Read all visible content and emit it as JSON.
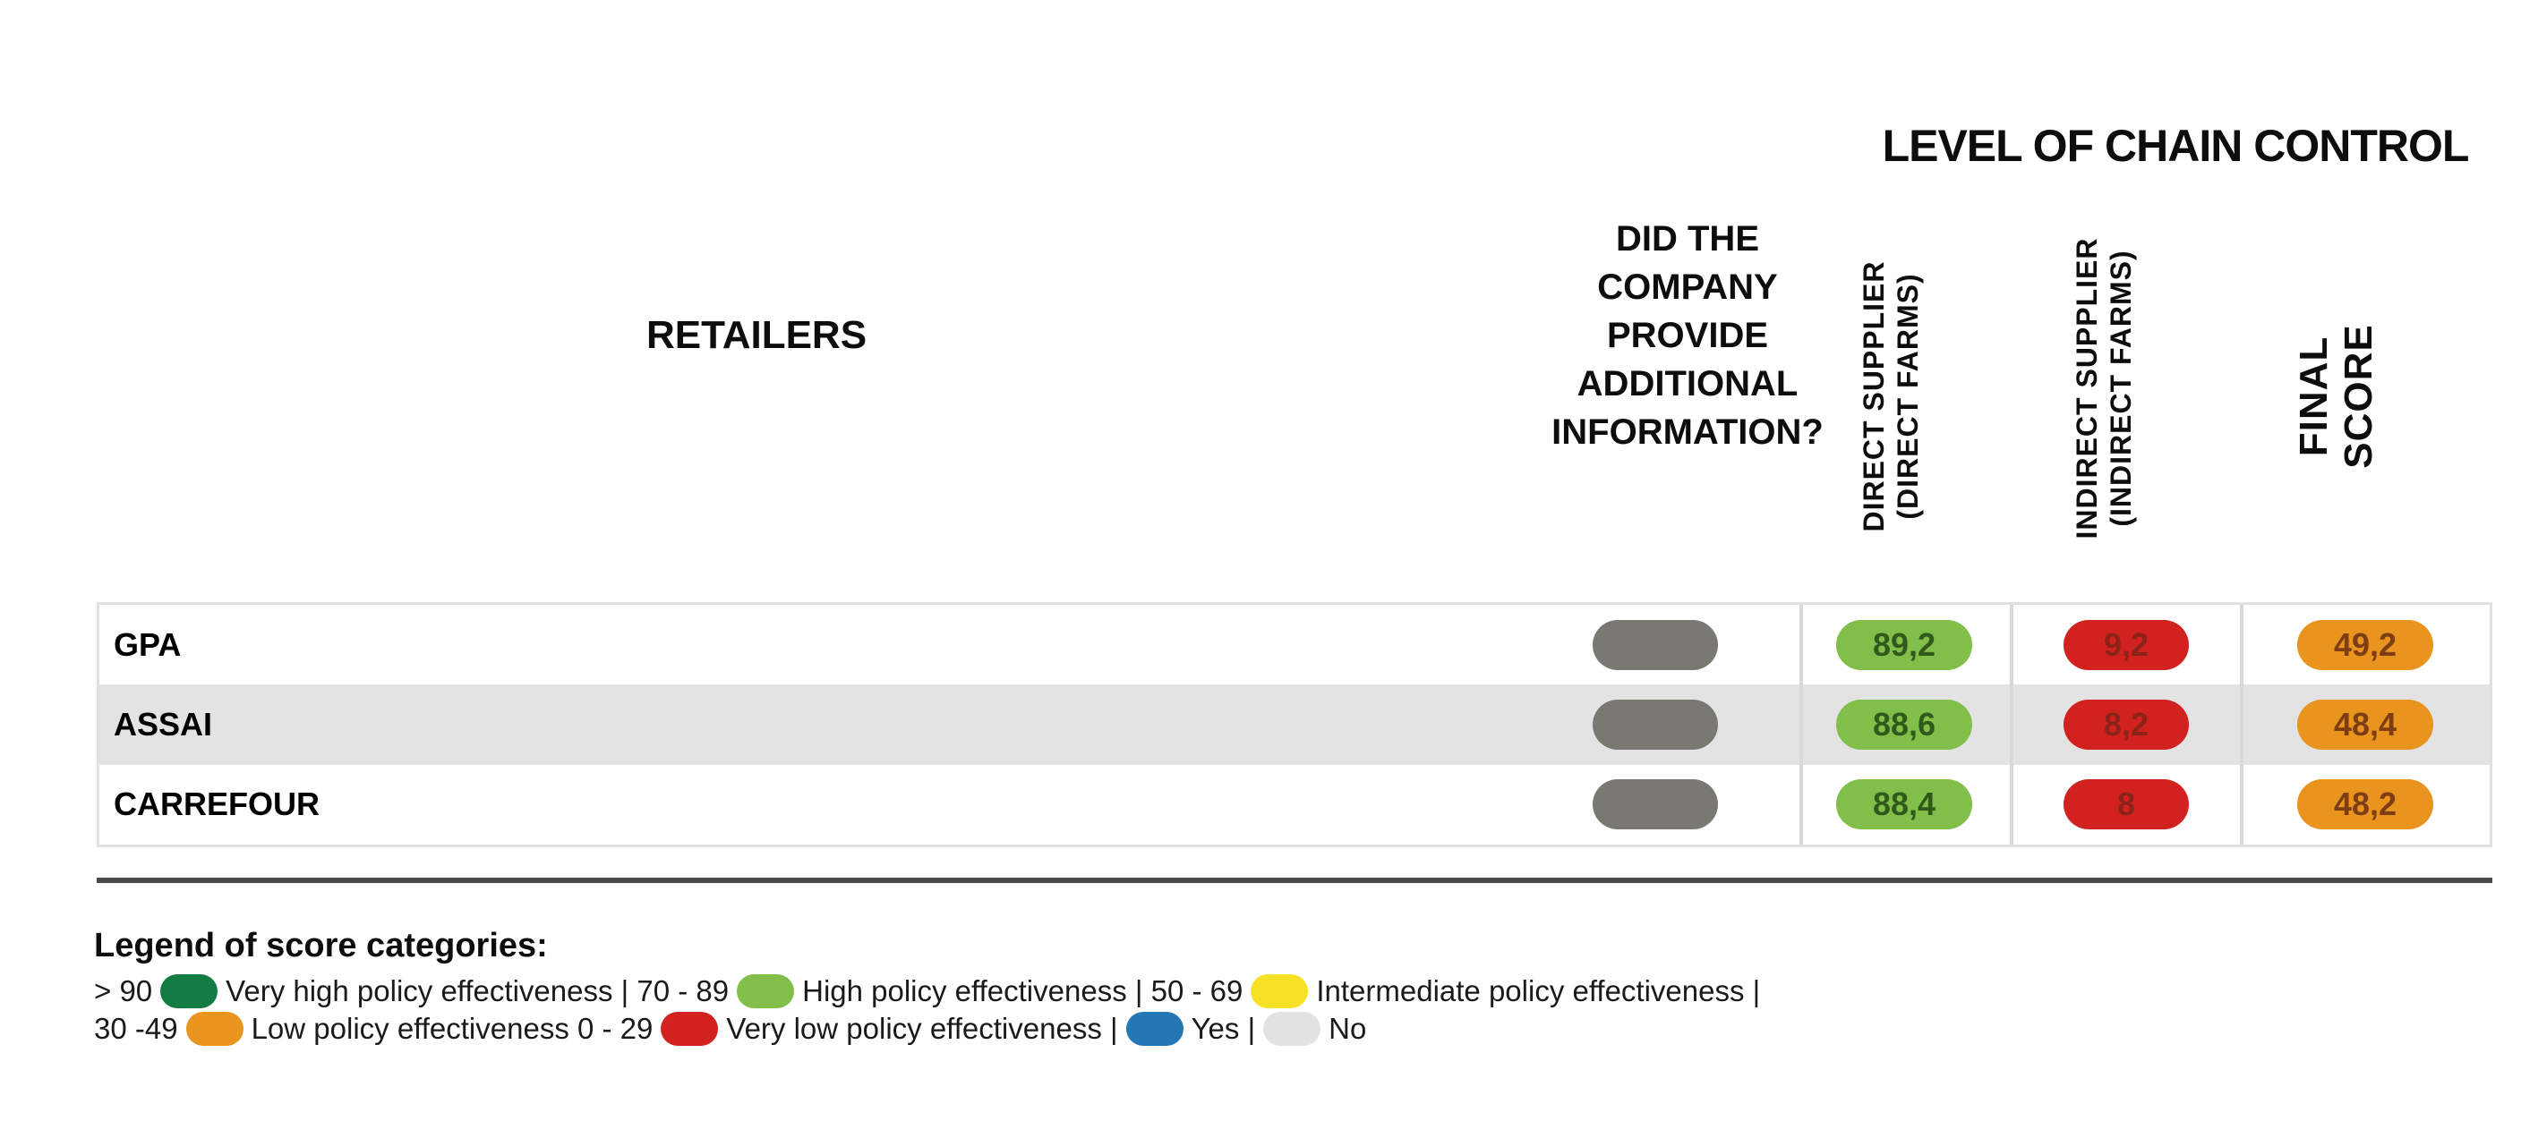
{
  "header": {
    "chain_control_title": "LEVEL OF CHAIN CONTROL",
    "retailers_label": "RETAILERS",
    "additional_info_lines": [
      "DID THE",
      "COMPANY",
      "PROVIDE",
      "ADDITIONAL",
      "INFORMATION?"
    ],
    "direct_supplier_lines": [
      "DIRECT SUPPLIER",
      "(DIRECT FARMS)"
    ],
    "indirect_supplier_lines": [
      "INDIRECT SUPPLIER",
      "(INDIRECT FARMS)"
    ],
    "final_score_lines": [
      "FINAL",
      "SCORE"
    ]
  },
  "chart_data": {
    "type": "table",
    "title": "LEVEL OF CHAIN CONTROL",
    "columns": [
      "RETAILERS",
      "DID THE COMPANY PROVIDE ADDITIONAL INFORMATION?",
      "DIRECT SUPPLIER (DIRECT FARMS)",
      "INDIRECT SUPPLIER (INDIRECT FARMS)",
      "FINAL SCORE"
    ],
    "rows": [
      {
        "retailer": "GPA",
        "additional_info": "No",
        "direct_supplier": 89.2,
        "direct_supplier_display": "89,2",
        "indirect_supplier": 9.2,
        "indirect_supplier_display": "9,2",
        "final_score": 49.2,
        "final_score_display": "49,2"
      },
      {
        "retailer": "ASSAI",
        "additional_info": "No",
        "direct_supplier": 88.6,
        "direct_supplier_display": "88,6",
        "indirect_supplier": 8.2,
        "indirect_supplier_display": "8,2",
        "final_score": 48.4,
        "final_score_display": "48,4"
      },
      {
        "retailer": "CARREFOUR",
        "additional_info": "No",
        "direct_supplier": 88.4,
        "direct_supplier_display": "88,4",
        "indirect_supplier": 8,
        "indirect_supplier_display": "8",
        "final_score": 48.2,
        "final_score_display": "48,2"
      }
    ],
    "score_categories": [
      {
        "range": "> 90",
        "label": "Very high policy effectiveness",
        "color": "#127c42"
      },
      {
        "range": "70 - 89",
        "label": "High policy effectiveness",
        "color": "#82be4a"
      },
      {
        "range": "50 - 69",
        "label": "Intermediate policy effectiveness",
        "color": "#f8e227"
      },
      {
        "range": "30 - 49",
        "label": "Low policy effectiveness",
        "color": "#e8941f"
      },
      {
        "range": "0 - 29",
        "label": "Very low policy effectiveness",
        "color": "#d2221f"
      },
      {
        "range": "Yes",
        "label": "Yes",
        "color": "#2377b4"
      },
      {
        "range": "No",
        "label": "No",
        "color": "#e2e2e2"
      }
    ]
  },
  "legend": {
    "title": "Legend of score categories:",
    "line1": [
      {
        "type": "text",
        "value": "> 90"
      },
      {
        "type": "pill",
        "color_key": "very_high_green"
      },
      {
        "type": "text",
        "value": "Very high policy effectiveness | 70 - 89"
      },
      {
        "type": "pill",
        "color_key": "high_green"
      },
      {
        "type": "text",
        "value": "High policy effectiveness | 50 - 69"
      },
      {
        "type": "pill",
        "color_key": "intermediate_yellow"
      },
      {
        "type": "text",
        "value": "Intermediate policy effectiveness |"
      }
    ],
    "line2": [
      {
        "type": "text",
        "value": "30 -49"
      },
      {
        "type": "pill",
        "color_key": "low_orange"
      },
      {
        "type": "text",
        "value": "Low policy effectiveness 0 - 29"
      },
      {
        "type": "pill",
        "color_key": "very_low_red"
      },
      {
        "type": "text",
        "value": "Very low policy effectiveness |"
      },
      {
        "type": "pill",
        "color_key": "yes_blue"
      },
      {
        "type": "text",
        "value": "Yes |"
      },
      {
        "type": "pill",
        "color_key": "no_gray"
      },
      {
        "type": "text",
        "value": "No"
      }
    ]
  },
  "colors": {
    "very_high_green": "#127c42",
    "high_green": "#82be4a",
    "intermediate_yellow": "#f8e227",
    "low_orange": "#e8941f",
    "very_low_red": "#d2221f",
    "yes_blue": "#2377b4",
    "no_gray": "#e2e2e2",
    "info_pill_gray": "#7a7872",
    "green_pill_text": "#2f5a1b",
    "red_pill_text": "#8c2318",
    "orange_pill_text": "#7f3d13",
    "alt_row_bg": "#e3e3e3",
    "table_border": "#e0e0e0",
    "column_divider": "#d9d9d9",
    "dark_rule": "#4a4a4a"
  }
}
